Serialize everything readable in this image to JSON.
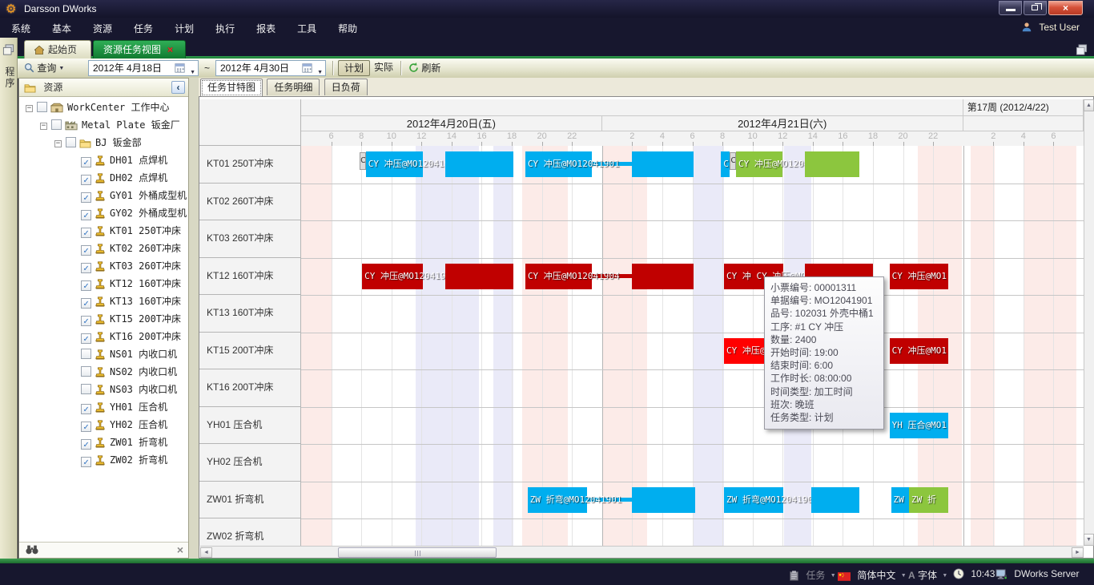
{
  "window": {
    "title": "Darsson DWorks",
    "close_glyph": "×"
  },
  "menu": {
    "items": [
      "系统",
      "基本",
      "资源",
      "任务",
      "计划",
      "执行",
      "报表",
      "工具",
      "帮助"
    ],
    "user": "Test User"
  },
  "tabs": {
    "home": "起始页",
    "active": "资源任务视图",
    "close_glyph": "×"
  },
  "toolbar": {
    "search": "查询",
    "date_from": "2012年 4月18日",
    "tilde": "~",
    "date_to": "2012年 4月30日",
    "plan": "计划",
    "actual": "实际",
    "refresh": "刷新"
  },
  "leftstrip": {
    "vertical_text": "程序"
  },
  "resource_panel": {
    "title": "资源",
    "collapse_glyph": "‹",
    "close_glyph": "×",
    "tree": [
      {
        "level": 0,
        "label": "WorkCenter 工作中心",
        "icon": "workcenter-icon",
        "checked": false,
        "expander": true
      },
      {
        "level": 1,
        "label": "Metal Plate 钣金厂",
        "icon": "factory-icon",
        "checked": false,
        "expander": true
      },
      {
        "level": 2,
        "label": "BJ 钣金部",
        "icon": "folder-icon",
        "checked": false,
        "expander": true
      },
      {
        "level": 3,
        "label": "DH01 点焊机",
        "icon": "machine-icon",
        "checked": true
      },
      {
        "level": 3,
        "label": "DH02 点焊机",
        "icon": "machine-icon",
        "checked": true
      },
      {
        "level": 3,
        "label": "GY01 外桶成型机",
        "icon": "machine-icon",
        "checked": true
      },
      {
        "level": 3,
        "label": "GY02 外桶成型机",
        "icon": "machine-icon",
        "checked": true
      },
      {
        "level": 3,
        "label": "KT01 250T冲床",
        "icon": "machine-icon",
        "checked": true
      },
      {
        "level": 3,
        "label": "KT02 260T冲床",
        "icon": "machine-icon",
        "checked": true
      },
      {
        "level": 3,
        "label": "KT03 260T冲床",
        "icon": "machine-icon",
        "checked": true
      },
      {
        "level": 3,
        "label": "KT12 160T冲床",
        "icon": "machine-icon",
        "checked": true
      },
      {
        "level": 3,
        "label": "KT13 160T冲床",
        "icon": "machine-icon",
        "checked": true
      },
      {
        "level": 3,
        "label": "KT15 200T冲床",
        "icon": "machine-icon",
        "checked": true
      },
      {
        "level": 3,
        "label": "KT16 200T冲床",
        "icon": "machine-icon",
        "checked": true
      },
      {
        "level": 3,
        "label": "NS01 内收口机",
        "icon": "machine-icon",
        "checked": false
      },
      {
        "level": 3,
        "label": "NS02 内收口机",
        "icon": "machine-icon",
        "checked": false
      },
      {
        "level": 3,
        "label": "NS03 内收口机",
        "icon": "machine-icon",
        "checked": false
      },
      {
        "level": 3,
        "label": "YH01 压合机",
        "icon": "machine-icon",
        "checked": true
      },
      {
        "level": 3,
        "label": "YH02 压合机",
        "icon": "machine-icon",
        "checked": true
      },
      {
        "level": 3,
        "label": "ZW01 折弯机",
        "icon": "machine-icon",
        "checked": true
      },
      {
        "level": 3,
        "label": "ZW02 折弯机",
        "icon": "machine-icon",
        "checked": true
      }
    ]
  },
  "gantt": {
    "tabs": [
      "任务甘特图",
      "任务明细",
      "日负荷"
    ],
    "week_label": "第17周 (2012/4/22)",
    "days": [
      {
        "label": "2012年4月20日(五)",
        "t0": 0,
        "t1": 20
      },
      {
        "label": "2012年4月21日(六)",
        "t0": 20,
        "t1": 44
      },
      {
        "label": "",
        "t0": 44,
        "t1": 52
      }
    ],
    "hour_labels": [
      {
        "t": 2,
        "text": "6"
      },
      {
        "t": 4,
        "text": "8"
      },
      {
        "t": 6,
        "text": "10"
      },
      {
        "t": 8,
        "text": "12"
      },
      {
        "t": 10,
        "text": "14"
      },
      {
        "t": 12,
        "text": "16"
      },
      {
        "t": 14,
        "text": "18"
      },
      {
        "t": 16,
        "text": "20"
      },
      {
        "t": 18,
        "text": "22"
      },
      {
        "t": 22,
        "text": "2"
      },
      {
        "t": 24,
        "text": "4"
      },
      {
        "t": 26,
        "text": "6"
      },
      {
        "t": 28,
        "text": "8"
      },
      {
        "t": 30,
        "text": "10"
      },
      {
        "t": 32,
        "text": "12"
      },
      {
        "t": 34,
        "text": "14"
      },
      {
        "t": 36,
        "text": "16"
      },
      {
        "t": 38,
        "text": "18"
      },
      {
        "t": 40,
        "text": "20"
      },
      {
        "t": 42,
        "text": "22"
      },
      {
        "t": 46,
        "text": "2"
      },
      {
        "t": 48,
        "text": "4"
      },
      {
        "t": 50,
        "text": "6"
      }
    ],
    "rows": [
      {
        "label": "KT01 250T冲床"
      },
      {
        "label": "KT02 260T冲床"
      },
      {
        "label": "KT03 260T冲床"
      },
      {
        "label": "KT12 160T冲床"
      },
      {
        "label": "KT13 160T冲床"
      },
      {
        "label": "KT15 200T冲床"
      },
      {
        "label": "KT16 200T冲床"
      },
      {
        "label": "YH01 压合机"
      },
      {
        "label": "YH02 压合机"
      },
      {
        "label": "ZW01 折弯机"
      },
      {
        "label": "ZW02 折弯机"
      }
    ],
    "colors": {
      "blue": "#00AEEF",
      "green": "#8CC63E",
      "darkred": "#C00000",
      "red": "#FF0000"
    },
    "stripes": [
      {
        "t0": 0,
        "t1": 2,
        "color": "pink"
      },
      {
        "t0": 7.6,
        "t1": 11.8,
        "color": "lav"
      },
      {
        "t0": 12.8,
        "t1": 14.1,
        "color": "lav"
      },
      {
        "t0": 14.7,
        "t1": 17.7,
        "color": "pink"
      },
      {
        "t0": 20,
        "t1": 23,
        "color": "pink"
      },
      {
        "t0": 26.1,
        "t1": 28.1,
        "color": "lav"
      },
      {
        "t0": 32.1,
        "t1": 33.9,
        "color": "lav"
      },
      {
        "t0": 41,
        "t1": 43.9,
        "color": "pink"
      },
      {
        "t0": 44.5,
        "t1": 46.1,
        "color": "pink"
      },
      {
        "t0": 48,
        "t1": 51.5,
        "color": "pink"
      }
    ],
    "bars": [
      {
        "row": 0,
        "type": "marker",
        "t0": 3.9,
        "t1": 4.3,
        "label": "C"
      },
      {
        "row": 0,
        "type": "bar",
        "color": "blue",
        "t0": 4.3,
        "t1": 8.1,
        "label": "CY 冲压@MO12041901"
      },
      {
        "row": 0,
        "type": "bar",
        "color": "blue",
        "t0": 9.6,
        "t1": 14.1,
        "label": ""
      },
      {
        "row": 0,
        "type": "bar",
        "color": "blue",
        "t0": 14.9,
        "t1": 19.3,
        "label": "CY 冲压@MO12041901"
      },
      {
        "row": 0,
        "type": "thin",
        "color": "blue",
        "t0": 19.3,
        "t1": 22.0
      },
      {
        "row": 0,
        "type": "bar",
        "color": "blue",
        "t0": 22.0,
        "t1": 26.1,
        "label": ""
      },
      {
        "row": 0,
        "type": "bar",
        "color": "blue",
        "t0": 27.9,
        "t1": 28.5,
        "label": "C"
      },
      {
        "row": 0,
        "type": "marker",
        "t0": 28.5,
        "t1": 28.9,
        "label": "C"
      },
      {
        "row": 0,
        "type": "bar",
        "color": "green",
        "t0": 28.9,
        "t1": 32.0,
        "label": "CY 冲压@MO12041902"
      },
      {
        "row": 0,
        "type": "bar",
        "color": "green",
        "t0": 33.5,
        "t1": 37.1,
        "label": ""
      },
      {
        "row": 3,
        "type": "bar",
        "color": "darkred",
        "t0": 4.05,
        "t1": 8.1,
        "label": "CY 冲压@MO12041904"
      },
      {
        "row": 3,
        "type": "bar",
        "color": "darkred",
        "t0": 9.6,
        "t1": 14.1,
        "label": ""
      },
      {
        "row": 3,
        "type": "bar",
        "color": "darkred",
        "t0": 14.9,
        "t1": 19.3,
        "label": "CY 冲压@MO12041904"
      },
      {
        "row": 3,
        "type": "thin",
        "color": "darkred",
        "t0": 19.3,
        "t1": 22.0
      },
      {
        "row": 3,
        "type": "bar",
        "color": "darkred",
        "t0": 22.0,
        "t1": 26.1,
        "label": ""
      },
      {
        "row": 3,
        "type": "bar",
        "color": "darkred",
        "t0": 28.1,
        "t1": 32.05,
        "label": "CY 冲 CY 冲压@MO12041904"
      },
      {
        "row": 3,
        "type": "bar",
        "color": "darkred",
        "t0": 33.5,
        "t1": 38.0,
        "label": ""
      },
      {
        "row": 3,
        "type": "bar",
        "color": "darkred",
        "t0": 39.1,
        "t1": 43.0,
        "label": "CY 冲压@MO1"
      },
      {
        "row": 5,
        "type": "bar",
        "color": "red",
        "t0": 28.1,
        "t1": 32.05,
        "label": "CY 冲压@MO12041903"
      },
      {
        "row": 5,
        "type": "bar",
        "color": "red",
        "t0": 33.5,
        "t1": 38.0,
        "label": ""
      },
      {
        "row": 5,
        "type": "bar",
        "color": "darkred",
        "t0": 39.1,
        "t1": 43.0,
        "label": "CY 冲压@MO1"
      },
      {
        "row": 7,
        "type": "bar",
        "color": "blue",
        "t0": 39.1,
        "t1": 43.0,
        "label": "YH 压合@MO1"
      },
      {
        "row": 9,
        "type": "bar",
        "color": "blue",
        "t0": 15.05,
        "t1": 19.0,
        "label": "ZW 折弯@MO12041901"
      },
      {
        "row": 9,
        "type": "thin",
        "color": "blue",
        "t0": 19.0,
        "t1": 22.0
      },
      {
        "row": 9,
        "type": "bar",
        "color": "blue",
        "t0": 22.0,
        "t1": 26.2,
        "label": ""
      },
      {
        "row": 9,
        "type": "bar",
        "color": "blue",
        "t0": 28.1,
        "t1": 32.05,
        "label": "ZW 折弯@MO12041901"
      },
      {
        "row": 9,
        "type": "bar",
        "color": "blue",
        "t0": 33.9,
        "t1": 37.1,
        "label": ""
      },
      {
        "row": 9,
        "type": "bar",
        "color": "blue",
        "t0": 39.2,
        "t1": 40.4,
        "label": "ZW"
      },
      {
        "row": 9,
        "type": "bar",
        "color": "green",
        "t0": 40.4,
        "t1": 43.0,
        "label": "ZW 折"
      }
    ],
    "tooltip": {
      "lines": [
        "小票编号: 00001311",
        "单据编号: MO12041901",
        "品号: 102031 外壳中桶1",
        "工序: #1  CY 冲压",
        "数量: 2400",
        "开始时间: 19:00",
        "结束时间: 6:00",
        "工作时长: 08:00:00",
        "时间类型: 加工时间",
        "班次: 晚班",
        "任务类型: 计划"
      ]
    },
    "scroll_glyphs": {
      "up": "▲",
      "down": "▼",
      "left": "◄",
      "right": "►"
    }
  },
  "statusbar": {
    "task": "任务",
    "language": "简体中文",
    "font": "字体",
    "font_letter": "A",
    "time": "10:43",
    "server": "DWorks Server"
  }
}
